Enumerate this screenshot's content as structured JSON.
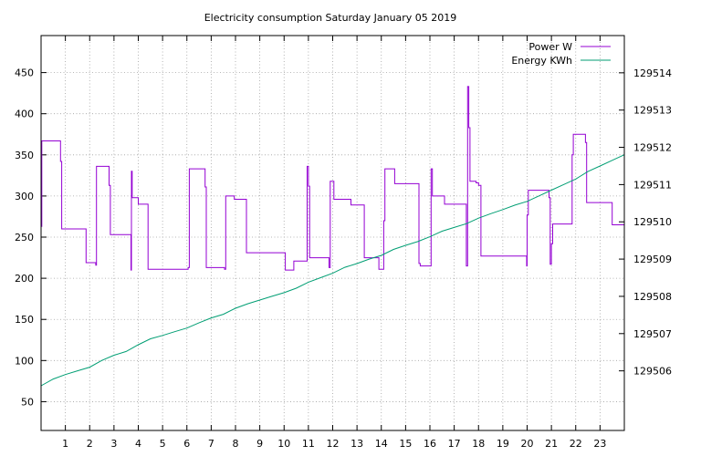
{
  "chart_data": {
    "type": "line",
    "title": "Electricity consumption Saturday January 05 2019",
    "xlabel": "",
    "ylabel": "",
    "y2label": "",
    "xlim": [
      0,
      24
    ],
    "ylim": [
      15,
      495
    ],
    "y2lim": [
      129504.4,
      129515
    ],
    "xticks": [
      1,
      2,
      3,
      4,
      5,
      6,
      7,
      8,
      9,
      10,
      11,
      12,
      13,
      14,
      15,
      16,
      17,
      18,
      19,
      20,
      21,
      22,
      23
    ],
    "yticks": [
      50,
      100,
      150,
      200,
      250,
      300,
      350,
      400,
      450
    ],
    "y2ticks": [
      129506,
      129507,
      129508,
      129509,
      129510,
      129511,
      129512,
      129513,
      129514
    ],
    "grid": true,
    "legend_position": "top-right",
    "series": [
      {
        "name": "Power W",
        "axis": "left",
        "color": "#9400d3",
        "style": "steps",
        "x": [
          0,
          0.03,
          0.07,
          0.8,
          0.85,
          0.9,
          1.85,
          1.9,
          2.25,
          2.28,
          2.3,
          2.8,
          2.85,
          2.9,
          3.7,
          3.72,
          3.75,
          3.95,
          4.0,
          4.4,
          4.45,
          4.5,
          6.0,
          6.05,
          6.1,
          6.7,
          6.75,
          6.8,
          7.5,
          7.55,
          7.6,
          7.9,
          7.95,
          8.4,
          8.45,
          10.0,
          10.05,
          10.35,
          10.4,
          10.95,
          11.0,
          11.05,
          11.8,
          11.85,
          11.9,
          12.0,
          12.05,
          12.7,
          12.75,
          13.3,
          13.35,
          13.9,
          13.95,
          14.1,
          14.15,
          14.55,
          14.6,
          15.55,
          15.6,
          16.05,
          16.1,
          16.55,
          16.6,
          17.5,
          17.55,
          17.6,
          17.65,
          17.9,
          18.0,
          18.1,
          18.15,
          19.98,
          20.0,
          20.05,
          20.1,
          20.9,
          20.95,
          21.0,
          21.05,
          21.1,
          21.15,
          21.8,
          21.85,
          21.9,
          22.35,
          22.4,
          22.45,
          23.5
        ],
        "values": [
          263,
          367,
          367,
          342,
          260,
          260,
          219,
          219,
          216,
          336,
          336,
          313,
          253,
          253,
          210,
          330,
          298,
          298,
          290,
          211,
          211,
          211,
          211,
          213,
          333,
          333,
          311,
          213,
          213,
          211,
          300,
          300,
          296,
          296,
          231,
          231,
          210,
          210,
          221,
          336,
          312,
          225,
          225,
          213,
          318,
          318,
          296,
          296,
          289,
          225,
          225,
          211,
          211,
          270,
          333,
          315,
          315,
          218,
          215,
          333,
          300,
          300,
          290,
          215,
          433,
          383,
          318,
          316,
          313,
          227,
          227,
          215,
          277,
          307,
          307,
          298,
          217,
          242,
          266,
          266,
          266,
          266,
          350,
          375,
          375,
          365,
          292,
          265
        ]
      },
      {
        "name": "Energy KWh",
        "axis": "right",
        "color": "#009e73",
        "style": "line",
        "x": [
          0,
          0.5,
          1,
          1.5,
          2,
          2.5,
          3,
          3.5,
          4,
          4.5,
          5,
          5.5,
          6,
          6.5,
          7,
          7.5,
          8,
          8.5,
          9,
          9.5,
          10,
          10.5,
          11,
          11.5,
          12,
          12.5,
          13,
          13.5,
          14,
          14.5,
          15,
          15.5,
          16,
          16.5,
          17,
          17.5,
          18,
          18.5,
          19,
          19.5,
          20,
          20.5,
          21,
          21.5,
          22,
          22.5,
          23,
          23.5,
          24
        ],
        "values": [
          129505.6,
          129505.78,
          129505.9,
          129506.0,
          129506.1,
          129506.28,
          129506.42,
          129506.52,
          129506.7,
          129506.86,
          129506.95,
          129507.05,
          129507.15,
          129507.29,
          129507.42,
          129507.52,
          129507.68,
          129507.8,
          129507.9,
          129508.0,
          129508.1,
          129508.22,
          129508.38,
          129508.5,
          129508.62,
          129508.78,
          129508.88,
          129509.0,
          129509.1,
          129509.26,
          129509.37,
          129509.47,
          129509.6,
          129509.75,
          129509.85,
          129509.95,
          129510.1,
          129510.22,
          129510.33,
          129510.45,
          129510.55,
          129510.7,
          129510.85,
          129511.0,
          129511.15,
          129511.35,
          129511.5,
          129511.65,
          129511.8
        ]
      }
    ]
  }
}
